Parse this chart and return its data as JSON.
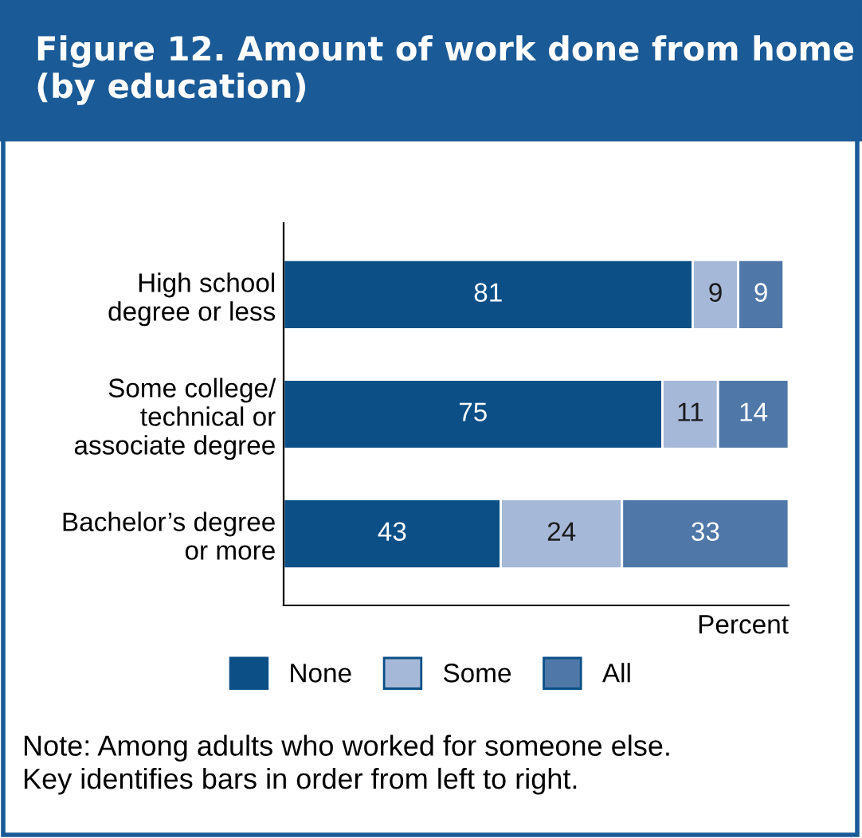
{
  "chart_data": {
    "type": "bar",
    "orientation": "horizontal",
    "stacked": true,
    "title": "Figure 12. Amount of work done from home\n(by education)",
    "xlabel": "Percent",
    "categories": [
      "High school\ndegree or less",
      "Some college/\ntechnical or\nassociate degree",
      "Bachelor’s degree\nor more"
    ],
    "series": [
      {
        "name": "None",
        "color": "#0b4f86",
        "values": [
          81,
          75,
          43
        ]
      },
      {
        "name": "Some",
        "color": "#a6b8d8",
        "values": [
          9,
          11,
          24
        ]
      },
      {
        "name": "All",
        "color": "#4f78a8",
        "values": [
          9,
          14,
          33
        ]
      }
    ],
    "data_labels": true,
    "legend": "bottom",
    "tick_labels": "y",
    "grid": false,
    "annotations": [
      "Note: Among adults who worked for someone else.\nKey identifies bars in order from left to right."
    ]
  }
}
